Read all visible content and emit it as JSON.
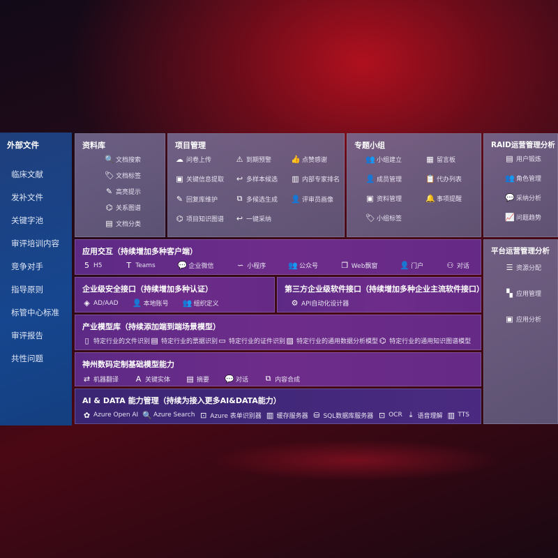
{
  "left": {
    "title": "外部文件",
    "items": [
      "临床文献",
      "发补文件",
      "关键字池",
      "审评培训内容",
      "竞争对手",
      "指导原则",
      "标管中心标准",
      "审评报告",
      "共性问题"
    ]
  },
  "library": {
    "title": "资料库",
    "items": [
      {
        "label": "文档搜索",
        "icon": "document-search-icon",
        "glyph": "🔍"
      },
      {
        "label": "文档标签",
        "icon": "tag-icon",
        "glyph": "🏷"
      },
      {
        "label": "高亮提示",
        "icon": "pen-icon",
        "glyph": "✎"
      },
      {
        "label": "关系图谱",
        "icon": "graph-icon",
        "glyph": "⌬"
      },
      {
        "label": "文档分类",
        "icon": "documents-icon",
        "glyph": "▤"
      }
    ]
  },
  "project": {
    "title": "项目管理",
    "items": [
      {
        "label": "问卷上传",
        "icon": "cloud-upload-icon",
        "glyph": "☁"
      },
      {
        "label": "到期预警",
        "icon": "alarm-icon",
        "glyph": "⚠"
      },
      {
        "label": "点赞感谢",
        "icon": "thumbs-up-icon",
        "glyph": "👍"
      },
      {
        "label": "关键信息提取",
        "icon": "window-icon",
        "glyph": "▣"
      },
      {
        "label": "多样本候选",
        "icon": "reply-icon",
        "glyph": "↩"
      },
      {
        "label": "内部专家排名",
        "icon": "ranking-icon",
        "glyph": "▥"
      },
      {
        "label": "回复库维护",
        "icon": "edit-icon",
        "glyph": "✎"
      },
      {
        "label": "多候选生成",
        "icon": "puzzle-icon",
        "glyph": "⧉"
      },
      {
        "label": "评审员画像",
        "icon": "user-icon",
        "glyph": "👤"
      },
      {
        "label": "项目知识图谱",
        "icon": "graph-icon",
        "glyph": "⌬"
      },
      {
        "label": "一键采纳",
        "icon": "reply-icon",
        "glyph": "↩"
      }
    ]
  },
  "group": {
    "title": "专题小组",
    "items": [
      {
        "label": "小组建立",
        "icon": "group-icon",
        "glyph": "👥"
      },
      {
        "label": "留言板",
        "icon": "bbs-icon",
        "glyph": "▦"
      },
      {
        "label": "成员管理",
        "icon": "user-add-icon",
        "glyph": "👤"
      },
      {
        "label": "代办列表",
        "icon": "clipboard-icon",
        "glyph": "📋"
      },
      {
        "label": "资料管理",
        "icon": "folder-icon",
        "glyph": "▣"
      },
      {
        "label": "事项提醒",
        "icon": "bell-icon",
        "glyph": "🔔"
      },
      {
        "label": "小组标签",
        "icon": "tag-icon",
        "glyph": "🏷"
      }
    ]
  },
  "raid": {
    "title": "RAID运营管理分析",
    "items": [
      {
        "label": "用户锻炼",
        "icon": "id-card-icon",
        "glyph": "▤"
      },
      {
        "label": "角色管理",
        "icon": "users-icon",
        "glyph": "👥"
      },
      {
        "label": "采纳分析",
        "icon": "qa-icon",
        "glyph": "💬"
      },
      {
        "label": "问题趋势",
        "icon": "trend-icon",
        "glyph": "📈"
      }
    ]
  },
  "platform": {
    "title": "平台运营管理分析",
    "items": [
      {
        "label": "资源分配",
        "icon": "checklist-icon",
        "glyph": "☰"
      },
      {
        "label": "应用管理",
        "icon": "apps-icon",
        "glyph": "▚"
      },
      {
        "label": "应用分析",
        "icon": "analysis-icon",
        "glyph": "▣"
      }
    ]
  },
  "app": {
    "title": "应用交互（持续增加多种客户端）",
    "items": [
      {
        "label": "H5",
        "icon": "html5-icon",
        "glyph": "5"
      },
      {
        "label": "Teams",
        "icon": "teams-icon",
        "glyph": "T"
      },
      {
        "label": "企业微信",
        "icon": "wechat-icon",
        "glyph": "💬"
      },
      {
        "label": "小程序",
        "icon": "miniprogram-icon",
        "glyph": "∽"
      },
      {
        "label": "公众号",
        "icon": "public-account-icon",
        "glyph": "👥"
      },
      {
        "label": "Web飘窗",
        "icon": "window-icon",
        "glyph": "❐"
      },
      {
        "label": "门户",
        "icon": "portal-icon",
        "glyph": "👤"
      },
      {
        "label": "对话",
        "icon": "chat-icon",
        "glyph": "⚇"
      }
    ]
  },
  "security": {
    "title": "企业级安全接口（持续增加多种认证）",
    "items": [
      {
        "label": "AD/AAD",
        "icon": "diamond-icon",
        "glyph": "◈"
      },
      {
        "label": "本地账号",
        "icon": "account-icon",
        "glyph": "👤"
      },
      {
        "label": "组织定义",
        "icon": "org-icon",
        "glyph": "👥"
      }
    ]
  },
  "thirdparty": {
    "title": "第三方企业级软件接口（持续增加多种企业主流软件接口）",
    "items": [
      {
        "label": "API自动化设计器",
        "icon": "gear-icon",
        "glyph": "⚙"
      }
    ]
  },
  "industry": {
    "title": "产业模型库（持续添加端到端场景模型）",
    "items": [
      {
        "label": "特定行业的文件识别",
        "icon": "file-icon",
        "glyph": "▯"
      },
      {
        "label": "特定行业的票据识别",
        "icon": "receipt-icon",
        "glyph": "▤"
      },
      {
        "label": "特定行业的证件识别",
        "icon": "id-card-icon",
        "glyph": "▭"
      },
      {
        "label": "特定行业的通用数据分析模型",
        "icon": "chart-icon",
        "glyph": "▨"
      },
      {
        "label": "特定行业的通用知识图谱模型",
        "icon": "graph-icon",
        "glyph": "⌬"
      }
    ]
  },
  "base": {
    "title": "神州数码定制基础模型能力",
    "items": [
      {
        "label": "机器翻译",
        "icon": "translate-icon",
        "glyph": "⇄"
      },
      {
        "label": "关键实体",
        "icon": "entity-icon",
        "glyph": "A"
      },
      {
        "label": "摘要",
        "icon": "summary-icon",
        "glyph": "▤"
      },
      {
        "label": "对话",
        "icon": "chat-icon",
        "glyph": "💬"
      },
      {
        "label": "内容合成",
        "icon": "puzzle-icon",
        "glyph": "⧉"
      }
    ]
  },
  "ai": {
    "title": "AI & DATA 能力管理（持续为接入更多AI&DATA能力）",
    "items": [
      {
        "label": "Azure Open AI",
        "icon": "openai-icon",
        "glyph": "✿"
      },
      {
        "label": "Azure Search",
        "icon": "search-icon",
        "glyph": "🔍"
      },
      {
        "label": "Azure 表单识别器",
        "icon": "form-icon",
        "glyph": "⊡"
      },
      {
        "label": "缓存服务器",
        "icon": "cache-icon",
        "glyph": "▥"
      },
      {
        "label": "SQL数据库服务器",
        "icon": "database-icon",
        "glyph": "⛁"
      },
      {
        "label": "OCR",
        "icon": "ocr-icon",
        "glyph": "⊡"
      },
      {
        "label": "语音理解",
        "icon": "download-icon",
        "glyph": "⤓"
      },
      {
        "label": "TTS",
        "icon": "tts-icon",
        "glyph": "▥"
      }
    ]
  }
}
